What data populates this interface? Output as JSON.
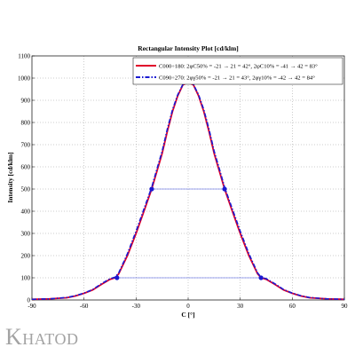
{
  "chart_data": {
    "type": "line",
    "title": "Rectangular Intensity Plot [cd/klm]",
    "xlabel": "C [°]",
    "ylabel": "Intensity [cd/klm]",
    "xlim": [
      -90,
      90
    ],
    "ylim": [
      0,
      1100
    ],
    "xticks": [
      -90,
      -60,
      -30,
      0,
      30,
      60,
      90
    ],
    "yticks": [
      0,
      100,
      200,
      300,
      400,
      500,
      600,
      700,
      800,
      900,
      1000,
      1100
    ],
    "grid": true,
    "legend_position": "top-right",
    "series": [
      {
        "name": "C000÷180: 2φC50% = -21 → 21 = 42°, 2φC10% = -41 → 42 = 83°",
        "color": "#e0002a",
        "style": "solid",
        "x": [
          -90,
          -80,
          -70,
          -65,
          -60,
          -55,
          -50,
          -45,
          -42,
          -40,
          -35,
          -30,
          -25,
          -21,
          -18,
          -15,
          -12,
          -9,
          -6,
          -3,
          0,
          3,
          6,
          9,
          12,
          15,
          18,
          21,
          25,
          30,
          35,
          40,
          42,
          45,
          50,
          55,
          60,
          65,
          70,
          80,
          90
        ],
        "y": [
          3,
          5,
          10,
          18,
          30,
          45,
          70,
          93,
          100,
          118,
          200,
          300,
          410,
          500,
          580,
          660,
          760,
          850,
          920,
          970,
          980,
          970,
          920,
          850,
          760,
          660,
          580,
          500,
          410,
          300,
          200,
          118,
          100,
          93,
          70,
          45,
          30,
          18,
          10,
          5,
          3
        ]
      },
      {
        "name": "C090÷270: 2φγ50% = -21 → 21 = 43°, 2φγ10% = -42 → 42 = 84°",
        "color": "#1a1ad2",
        "style": "dashdot",
        "x": [
          -90,
          -80,
          -70,
          -65,
          -60,
          -55,
          -50,
          -45,
          -42,
          -40,
          -35,
          -30,
          -25,
          -21,
          -18,
          -15,
          -12,
          -9,
          -6,
          -3,
          0,
          3,
          6,
          9,
          12,
          15,
          18,
          21,
          25,
          30,
          35,
          40,
          42,
          45,
          50,
          55,
          60,
          65,
          70,
          80,
          90
        ],
        "y": [
          3,
          5,
          11,
          19,
          31,
          47,
          73,
          96,
          103,
          122,
          208,
          310,
          420,
          508,
          590,
          670,
          770,
          858,
          925,
          972,
          982,
          972,
          925,
          858,
          770,
          670,
          590,
          508,
          420,
          310,
          208,
          122,
          103,
          96,
          73,
          47,
          31,
          19,
          11,
          5,
          3
        ]
      }
    ],
    "markers": [
      {
        "x": -21,
        "y": 500
      },
      {
        "x": 21,
        "y": 500
      },
      {
        "x": -41,
        "y": 100
      },
      {
        "x": 42,
        "y": 100
      }
    ],
    "reference_lines": [
      {
        "x": [
          -21,
          21
        ],
        "y": 500
      },
      {
        "x": [
          -41,
          42
        ],
        "y": 100
      }
    ]
  },
  "brand": {
    "logo_text": "Khatod"
  }
}
